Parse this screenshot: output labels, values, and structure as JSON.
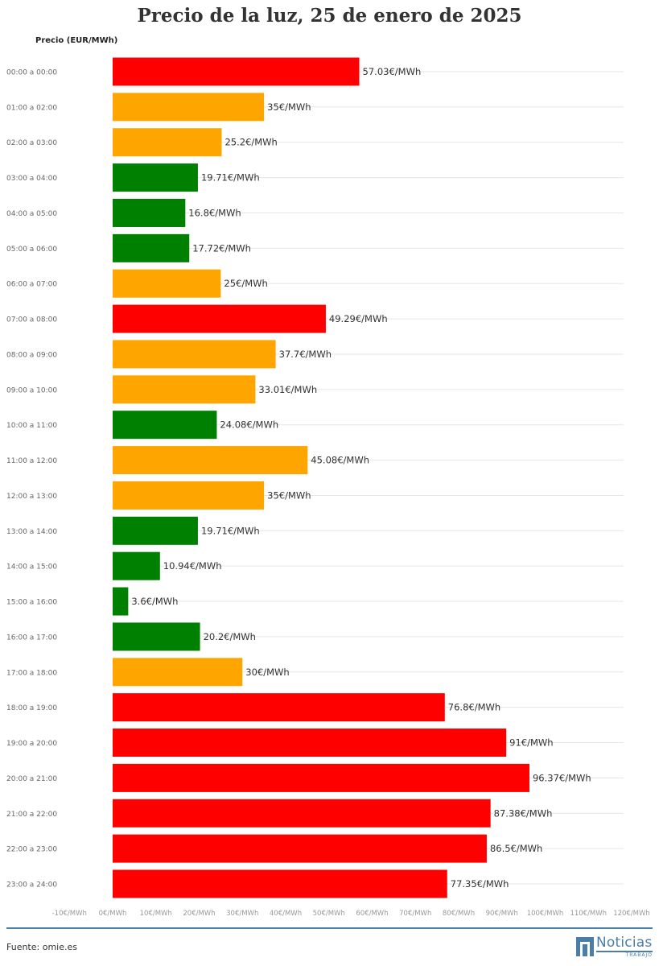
{
  "chart_data": {
    "type": "bar",
    "orientation": "horizontal",
    "title": "Precio de la luz, 25 de enero de 2025",
    "ylabel": "Precio (EUR/MWh)",
    "xlim": [
      -10,
      120
    ],
    "x_ticks": [
      "-10€/MWh",
      "0€/MWh",
      "10€/MWh",
      "20€/MWh",
      "30€/MWh",
      "40€/MWh",
      "50€/MWh",
      "60€/MWh",
      "70€/MWh",
      "80€/MWh",
      "90€/MWh",
      "100€/MWh",
      "110€/MWh",
      "120€/MWh"
    ],
    "categories": [
      "00:00 a 00:00",
      "01:00 a 02:00",
      "02:00 a 03:00",
      "03:00 a 04:00",
      "04:00 a 05:00",
      "05:00 a 06:00",
      "06:00 a 07:00",
      "07:00 a 08:00",
      "08:00 a 09:00",
      "09:00 a 10:00",
      "10:00 a 11:00",
      "11:00 a 12:00",
      "12:00 a 13:00",
      "13:00 a 14:00",
      "14:00 a 15:00",
      "15:00 a 16:00",
      "16:00 a 17:00",
      "17:00 a 18:00",
      "18:00 a 19:00",
      "19:00 a 20:00",
      "20:00 a 21:00",
      "21:00 a 22:00",
      "22:00 a 23:00",
      "23:00 a 24:00"
    ],
    "values": [
      57.03,
      35,
      25.2,
      19.71,
      16.8,
      17.72,
      25,
      49.29,
      37.7,
      33.01,
      24.08,
      45.08,
      35,
      19.71,
      10.94,
      3.6,
      20.2,
      30,
      76.8,
      91,
      96.37,
      87.38,
      86.5,
      77.35
    ],
    "data_labels": [
      "57.03€/MWh",
      "35€/MWh",
      "25.2€/MWh",
      "19.71€/MWh",
      "16.8€/MWh",
      "17.72€/MWh",
      "25€/MWh",
      "49.29€/MWh",
      "37.7€/MWh",
      "33.01€/MWh",
      "24.08€/MWh",
      "45.08€/MWh",
      "35€/MWh",
      "19.71€/MWh",
      "10.94€/MWh",
      "3.6€/MWh",
      "20.2€/MWh",
      "30€/MWh",
      "76.8€/MWh",
      "91€/MWh",
      "96.37€/MWh",
      "87.38€/MWh",
      "86.5€/MWh",
      "77.35€/MWh"
    ],
    "bar_colors": [
      "#ff0000",
      "#ffa500",
      "#ffa500",
      "#008000",
      "#008000",
      "#008000",
      "#ffa500",
      "#ff0000",
      "#ffa500",
      "#ffa500",
      "#008000",
      "#ffa500",
      "#ffa500",
      "#008000",
      "#008000",
      "#008000",
      "#008000",
      "#ffa500",
      "#ff0000",
      "#ff0000",
      "#ff0000",
      "#ff0000",
      "#ff0000",
      "#ff0000"
    ],
    "grid": true,
    "legend": "none"
  },
  "footer": {
    "source": "Fuente: omie.es",
    "logo_name": "Noticias",
    "logo_sub": "TRABAJO",
    "accent_color": "#4a7ea7"
  }
}
